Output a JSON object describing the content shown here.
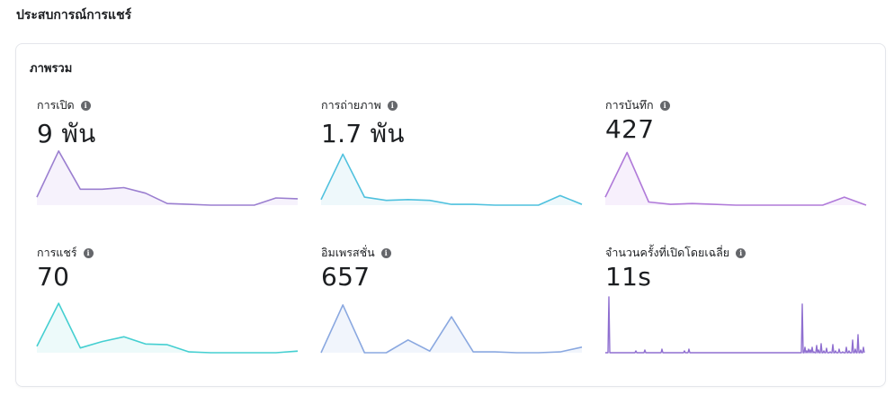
{
  "page_title": "ประสบการณ์การแชร์",
  "card_title": "ภาพรวม",
  "metrics": [
    {
      "label": "การเปิด",
      "value": "9 พัน",
      "color": "#9b7fd0",
      "fill": "#f6f2fc",
      "series": [
        10,
        68,
        20,
        20,
        22,
        15,
        2,
        1,
        0,
        0,
        0,
        9,
        8
      ]
    },
    {
      "label": "การถ่ายภาพ",
      "value": "1.7 พัน",
      "color": "#4fc1de",
      "fill": "#eef8fb",
      "series": [
        7,
        64,
        10,
        6,
        7,
        6,
        1,
        1,
        0,
        0,
        0,
        12,
        1
      ]
    },
    {
      "label": "การบันทึก",
      "value": "427",
      "color": "#b07ad9",
      "fill": "#f7f0fc",
      "series": [
        10,
        66,
        4,
        1,
        2,
        1,
        0,
        0,
        0,
        0,
        0,
        10,
        0
      ]
    },
    {
      "label": "การแชร์",
      "value": "70",
      "color": "#45cfd1",
      "fill": "#edfafa",
      "series": [
        8,
        62,
        6,
        14,
        20,
        11,
        10,
        1,
        0,
        0,
        0,
        0,
        2
      ]
    },
    {
      "label": "อิมเพรสชั่น",
      "value": "657",
      "color": "#8aa8e0",
      "fill": "#f1f5fc",
      "series": [
        0,
        60,
        0,
        0,
        16,
        2,
        45,
        1,
        1,
        0,
        0,
        1,
        7
      ]
    },
    {
      "label": "จำนวนครั้งที่เปิดโดยเฉลี่ย",
      "value": "11s",
      "color": "#8f6fd0",
      "fill": "none",
      "spiky": true
    }
  ]
}
